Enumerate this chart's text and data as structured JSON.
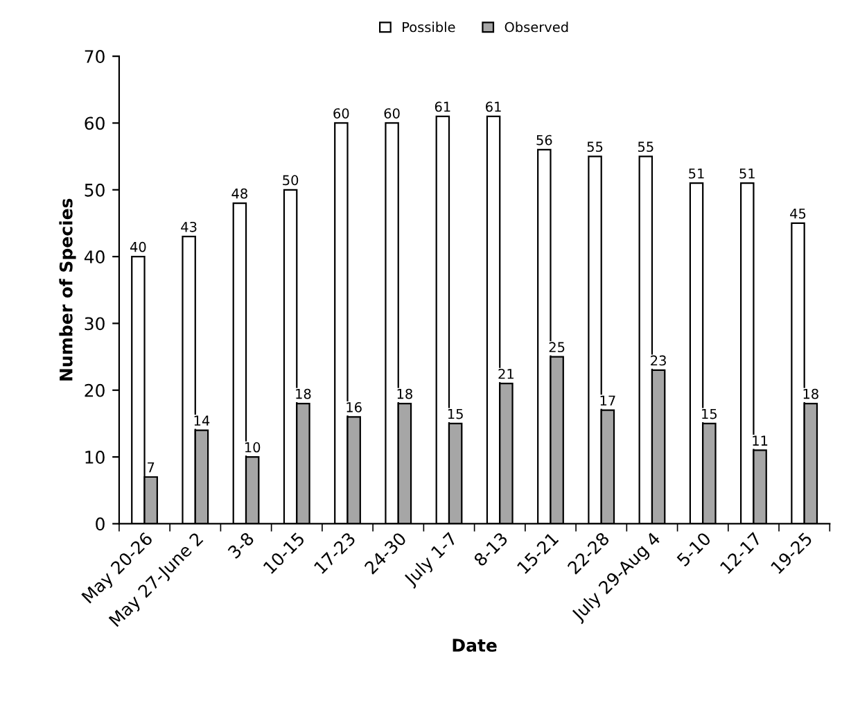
{
  "chart_data": {
    "type": "bar",
    "xlabel": "Date",
    "ylabel": "Number of Species",
    "categories": [
      "May 20-26",
      "May 27-June 2",
      "3-8",
      "10-15",
      "17-23",
      "24-30",
      "July 1-7",
      "8-13",
      "15-21",
      "22-28",
      "July 29-Aug 4",
      "5-10",
      "12-17",
      "19-25"
    ],
    "series": [
      {
        "name": "Possible",
        "color": "#ffffff",
        "values": [
          40,
          43,
          48,
          50,
          60,
          60,
          61,
          61,
          56,
          55,
          55,
          51,
          51,
          45
        ]
      },
      {
        "name": "Observed",
        "color": "#a6a6a6",
        "values": [
          7,
          14,
          10,
          18,
          16,
          18,
          15,
          21,
          25,
          17,
          23,
          15,
          11,
          18
        ]
      }
    ],
    "ylim": [
      0,
      70
    ],
    "yticks": [
      0,
      10,
      20,
      30,
      40,
      50,
      60,
      70
    ],
    "data_labels": true,
    "legend": "top",
    "grid": false
  }
}
